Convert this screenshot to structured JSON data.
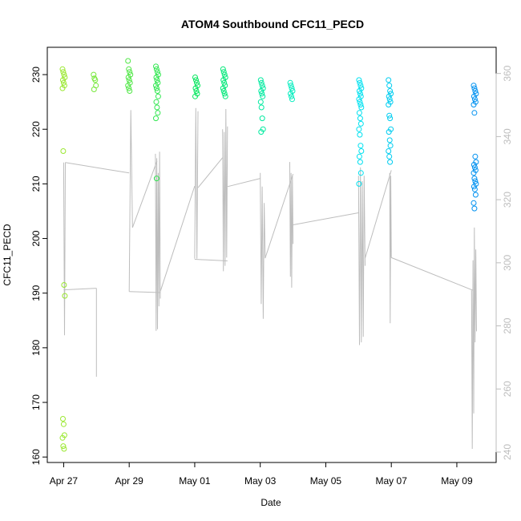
{
  "chart_data": {
    "type": "scatter",
    "title": "ATOM4 Southbound CFC11_PECD",
    "xlabel": "Date",
    "ylabel": "CFC11_PECD",
    "x_tick_labels": [
      "Apr 27",
      "Apr 29",
      "May 01",
      "May 03",
      "May 05",
      "May 07",
      "May 09"
    ],
    "x_ticks_day": [
      0,
      2,
      4,
      6,
      8,
      10,
      12
    ],
    "xlim_day": [
      -0.5,
      13.2
    ],
    "ylim": [
      159,
      235
    ],
    "y_ticks": [
      160,
      170,
      180,
      190,
      200,
      210,
      220,
      230
    ],
    "right_axis": {
      "label": "",
      "color": "#bdbdbd",
      "ylim": [
        236.7,
        368.3
      ],
      "ticks": [
        240,
        260,
        280,
        300,
        320,
        340,
        360
      ]
    },
    "point_color_gradient": [
      "#9ae830",
      "#00e660",
      "#00f0f0",
      "#0090f0"
    ],
    "scatter_clusters": [
      {
        "day": 0.0,
        "values": [
          231,
          230.5,
          230,
          229.5,
          229,
          228.5,
          228,
          227.5,
          216,
          191.5,
          189.5,
          167,
          166,
          164,
          163.5,
          162,
          161.5
        ]
      },
      {
        "day": 0.95,
        "values": [
          230,
          229.3,
          229,
          228,
          227.3
        ]
      },
      {
        "day": 2.0,
        "values": [
          232.5,
          231,
          230.5,
          230,
          229.5,
          229,
          228.5,
          228,
          227.5,
          227
        ]
      },
      {
        "day": 2.85,
        "values": [
          231.5,
          231,
          230.5,
          230,
          229.5,
          229,
          228.5,
          228,
          227.5,
          227,
          226,
          225,
          224,
          223,
          222,
          211
        ]
      },
      {
        "day": 4.05,
        "values": [
          229.5,
          229,
          228.5,
          228,
          227.5,
          227,
          226.5,
          226
        ]
      },
      {
        "day": 4.9,
        "values": [
          231,
          230.5,
          230,
          229.5,
          229,
          228.5,
          228,
          227.5,
          227,
          226.5,
          226
        ]
      },
      {
        "day": 6.05,
        "values": [
          229,
          228.5,
          228,
          227.5,
          227,
          226.5,
          226,
          225,
          224,
          222,
          220,
          219.5
        ]
      },
      {
        "day": 6.95,
        "values": [
          228.5,
          228,
          227.5,
          227,
          226.5,
          226,
          225.5
        ]
      },
      {
        "day": 9.05,
        "values": [
          229,
          228.5,
          228,
          227.5,
          227,
          226.5,
          226,
          225.5,
          225,
          224.5,
          224,
          223,
          222,
          221,
          220,
          219,
          217,
          216,
          215,
          214,
          212,
          210
        ]
      },
      {
        "day": 9.95,
        "values": [
          229,
          228,
          227,
          226.5,
          226,
          225.5,
          225,
          224.5,
          222.5,
          222,
          220,
          219.5,
          218,
          217,
          216,
          215,
          214
        ]
      },
      {
        "day": 12.55,
        "values": [
          228,
          227.5,
          227,
          226.5,
          226,
          225.5,
          225,
          224.5,
          223,
          215,
          214,
          213.5,
          213,
          212.5,
          212,
          211,
          210.5,
          210,
          209.5,
          209,
          208,
          206.5,
          205.5
        ]
      }
    ],
    "gray_trace_segments": [
      {
        "from_day": 0.0,
        "to_day": 0.05,
        "values": [
          213.9,
          182.3,
          213.9
        ]
      },
      {
        "from_day": 0.05,
        "to_day": 2.0,
        "values": [
          213.9,
          212.0
        ]
      },
      {
        "from_day": 0.0,
        "to_day": 1.0,
        "values": [
          190.6,
          190.9
        ]
      },
      {
        "from_day": 1.0,
        "to_day": 1.0,
        "values": [
          190.9,
          174.7
        ]
      },
      {
        "from_day": 2.0,
        "to_day": 2.1,
        "values": [
          190.3,
          223.5,
          202.0
        ]
      },
      {
        "from_day": 2.1,
        "to_day": 2.85,
        "values": [
          202.0,
          214.2
        ]
      },
      {
        "from_day": 2.0,
        "to_day": 2.95,
        "values": [
          190.3,
          190.1
        ]
      },
      {
        "from_day": 2.8,
        "to_day": 2.95,
        "values": [
          215.5,
          183.1,
          214.7,
          183.4,
          212.0,
          187.6,
          215.9,
          189.0
        ]
      },
      {
        "from_day": 2.95,
        "to_day": 4.0,
        "values": [
          190.3,
          209.6
        ]
      },
      {
        "from_day": 4.0,
        "to_day": 4.1,
        "values": [
          196.3,
          223.9,
          196.3,
          223.3
        ]
      },
      {
        "from_day": 4.1,
        "to_day": 4.85,
        "values": [
          209.3,
          214.8
        ]
      },
      {
        "from_day": 4.0,
        "to_day": 5.0,
        "values": [
          196.2,
          195.9
        ]
      },
      {
        "from_day": 4.85,
        "to_day": 5.0,
        "values": [
          220.0,
          194.0,
          219.5,
          195.0,
          223.7,
          196.5,
          220.5
        ]
      },
      {
        "from_day": 5.0,
        "to_day": 6.0,
        "values": [
          209.5,
          211.0
        ]
      },
      {
        "from_day": 6.0,
        "to_day": 6.15,
        "values": [
          212.0,
          188.0,
          209.5,
          185.3,
          206.5,
          196.4
        ]
      },
      {
        "from_day": 6.15,
        "to_day": 7.0,
        "values": [
          196.4,
          211.8
        ]
      },
      {
        "from_day": 6.9,
        "to_day": 7.0,
        "values": [
          214.0,
          193.0,
          212.0,
          191.0,
          211.5,
          199.0
        ]
      },
      {
        "from_day": 7.0,
        "to_day": 9.0,
        "values": [
          202.5,
          204.7
        ]
      },
      {
        "from_day": 9.0,
        "to_day": 9.2,
        "values": [
          211.5,
          180.5,
          213.0,
          181.0,
          210.5,
          182.0,
          211.5,
          195.0
        ]
      },
      {
        "from_day": 9.2,
        "to_day": 10.0,
        "values": [
          196.4,
          212.5
        ]
      },
      {
        "from_day": 9.95,
        "to_day": 10.0,
        "values": [
          212.0,
          184.5,
          211.5,
          196.5
        ]
      },
      {
        "from_day": 10.0,
        "to_day": 12.5,
        "values": [
          196.5,
          190.5
        ]
      },
      {
        "from_day": 12.45,
        "to_day": 12.6,
        "values": [
          190.5,
          161.5,
          196.0,
          168.0,
          202.0,
          181.0,
          198.0,
          183.0
        ]
      }
    ]
  }
}
